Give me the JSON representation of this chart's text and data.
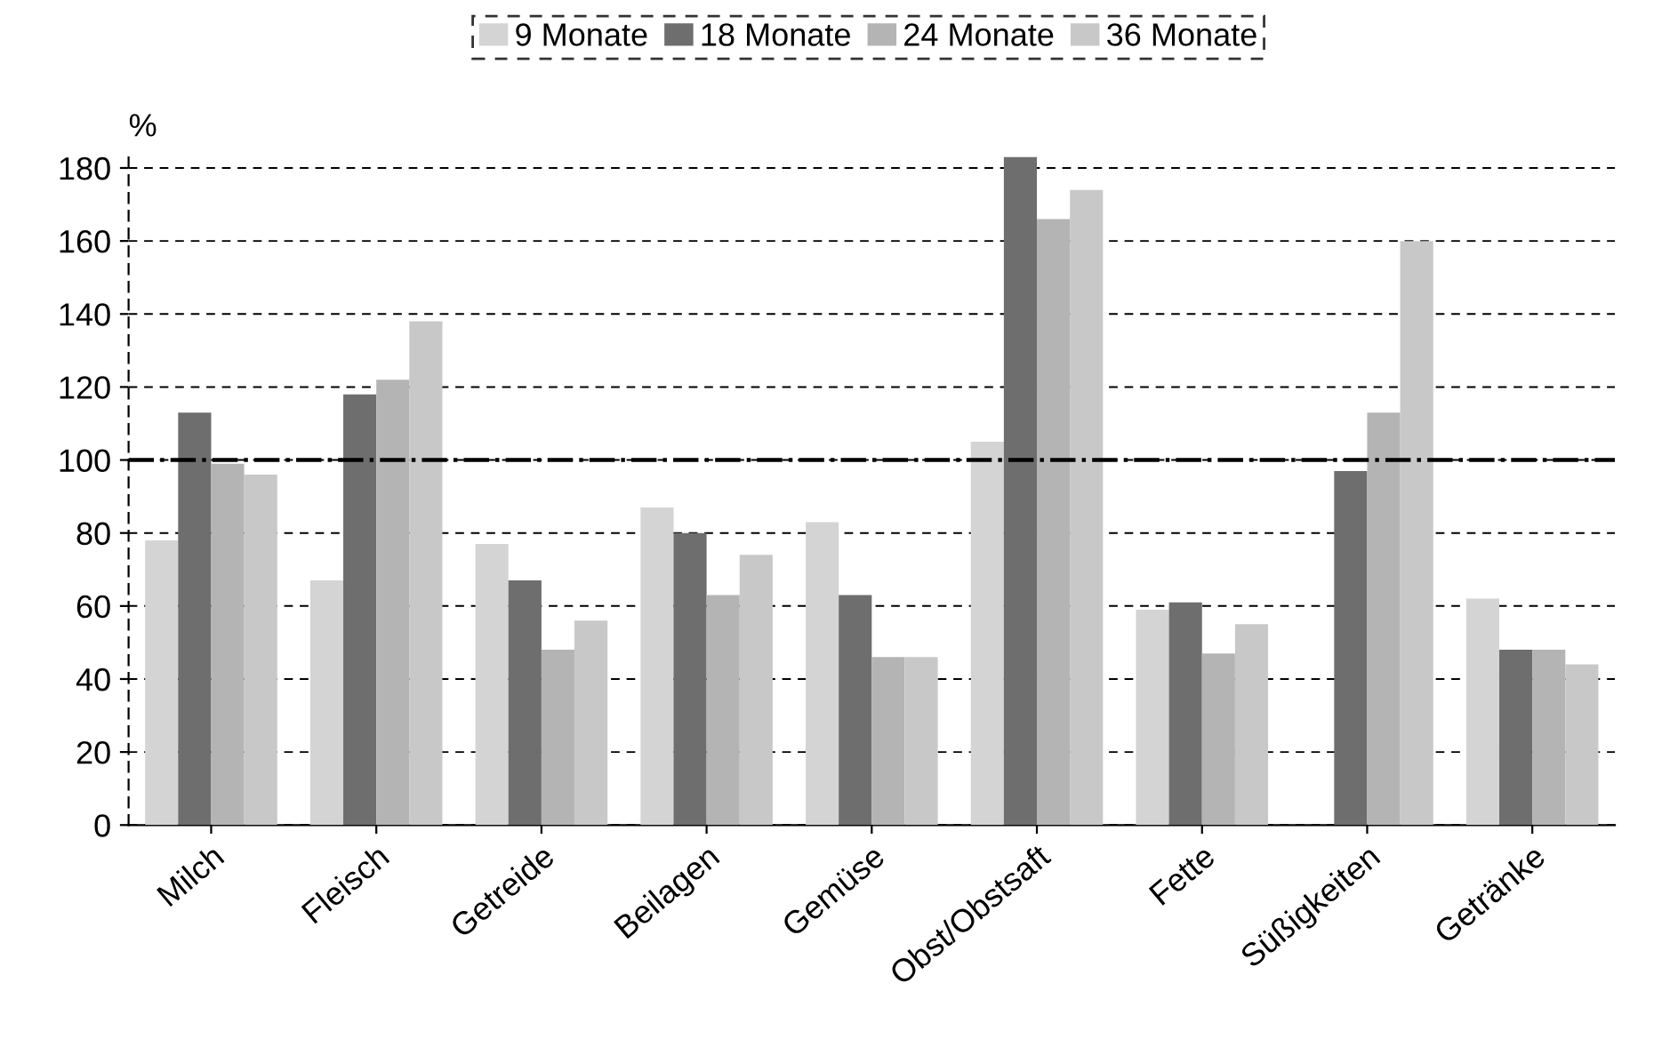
{
  "chart_data": {
    "type": "bar",
    "ylabel": "%",
    "categories": [
      "Milch",
      "Fleisch",
      "Getreide",
      "Beilagen",
      "Gemüse",
      "Obst/Obstsaft",
      "Fette",
      "Süßigkeiten",
      "Getränke"
    ],
    "series": [
      {
        "name": "9 Monate",
        "color": "#d4d4d4",
        "values": [
          78,
          67,
          77,
          87,
          83,
          105,
          59,
          null,
          62
        ]
      },
      {
        "name": "18 Monate",
        "color": "#6e6e6e",
        "values": [
          113,
          118,
          67,
          80,
          63,
          183,
          61,
          97,
          48
        ]
      },
      {
        "name": "24 Monate",
        "color": "#b4b4b4",
        "values": [
          99,
          122,
          48,
          63,
          46,
          166,
          47,
          113,
          48
        ]
      },
      {
        "name": "36 Monate",
        "color": "#c8c8c8",
        "values": [
          96,
          138,
          56,
          74,
          46,
          174,
          55,
          160,
          44
        ]
      }
    ],
    "ylim": [
      0,
      185
    ],
    "yticks": [
      0,
      20,
      40,
      60,
      80,
      100,
      120,
      140,
      160,
      180
    ],
    "ref_lines": [
      {
        "axis": "y",
        "value": 100,
        "color": "#000000",
        "line_style": "dashdot"
      }
    ],
    "grid": "y",
    "legend": "top"
  }
}
